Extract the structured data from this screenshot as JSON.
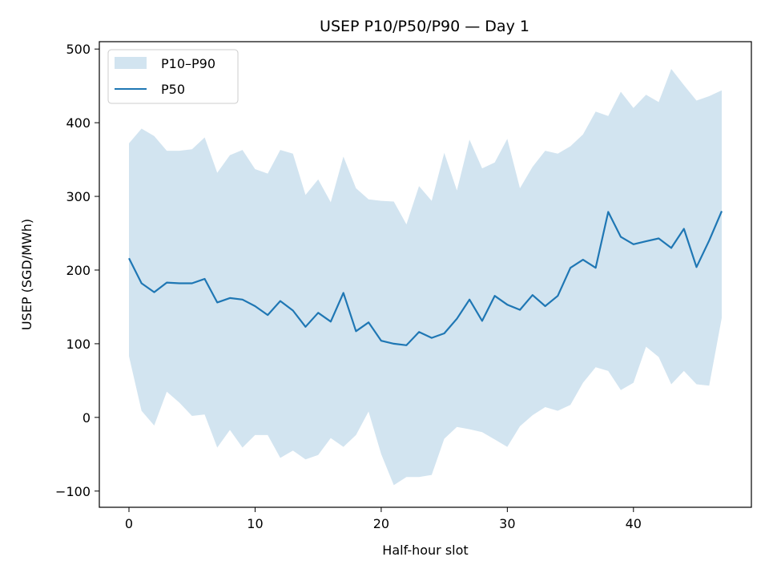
{
  "chart_data": {
    "type": "line",
    "title": "USEP P10/P50/P90 — Day 1",
    "xlabel": "Half-hour slot",
    "ylabel": "USEP (SGD/MWh)",
    "xlim": [
      -2.35,
      49.35
    ],
    "ylim": [
      -122,
      510
    ],
    "xticks": [
      0,
      10,
      20,
      30,
      40
    ],
    "yticks": [
      -100,
      0,
      100,
      200,
      300,
      400,
      500
    ],
    "ytick_labels": [
      "−100",
      "0",
      "100",
      "200",
      "300",
      "400",
      "500"
    ],
    "grid": false,
    "legend_position": "top-left",
    "legend": [
      "P10–P90",
      "P50"
    ],
    "x": [
      0,
      1,
      2,
      3,
      4,
      5,
      6,
      7,
      8,
      9,
      10,
      11,
      12,
      13,
      14,
      15,
      16,
      17,
      18,
      19,
      20,
      21,
      22,
      23,
      24,
      25,
      26,
      27,
      28,
      29,
      30,
      31,
      32,
      33,
      34,
      35,
      36,
      37,
      38,
      39,
      40,
      41,
      42,
      43,
      44,
      45,
      46,
      47
    ],
    "series": [
      {
        "name": "P50",
        "color": "#1f77b4",
        "values": [
          216,
          182,
          170,
          183,
          182,
          182,
          188,
          156,
          162,
          160,
          151,
          139,
          158,
          145,
          123,
          142,
          130,
          169,
          117,
          129,
          104,
          100,
          98,
          116,
          108,
          114,
          134,
          160,
          131,
          165,
          153,
          146,
          166,
          151,
          165,
          203,
          214,
          203,
          279,
          245,
          235,
          239,
          243,
          230,
          256,
          204,
          240,
          280
        ]
      },
      {
        "name": "P90",
        "values": [
          372,
          392,
          382,
          362,
          362,
          364,
          380,
          332,
          356,
          363,
          337,
          331,
          363,
          358,
          302,
          323,
          292,
          354,
          311,
          296,
          294,
          293,
          262,
          314,
          294,
          359,
          308,
          377,
          338,
          346,
          378,
          311,
          340,
          362,
          358,
          368,
          384,
          415,
          409,
          442,
          420,
          438,
          428,
          473,
          451,
          430,
          436,
          444
        ]
      },
      {
        "name": "P10",
        "values": [
          83,
          9,
          -11,
          35,
          20,
          2,
          4,
          -41,
          -17,
          -41,
          -24,
          -24,
          -55,
          -45,
          -57,
          -51,
          -28,
          -40,
          -24,
          8,
          -50,
          -92,
          -81,
          -81,
          -78,
          -29,
          -13,
          -16,
          -20,
          -30,
          -40,
          -12,
          3,
          14,
          9,
          17,
          47,
          68,
          63,
          37,
          47,
          96,
          82,
          45,
          63,
          45,
          43,
          135
        ]
      }
    ],
    "band_color": "#1f77b4",
    "band_opacity": 0.2
  }
}
